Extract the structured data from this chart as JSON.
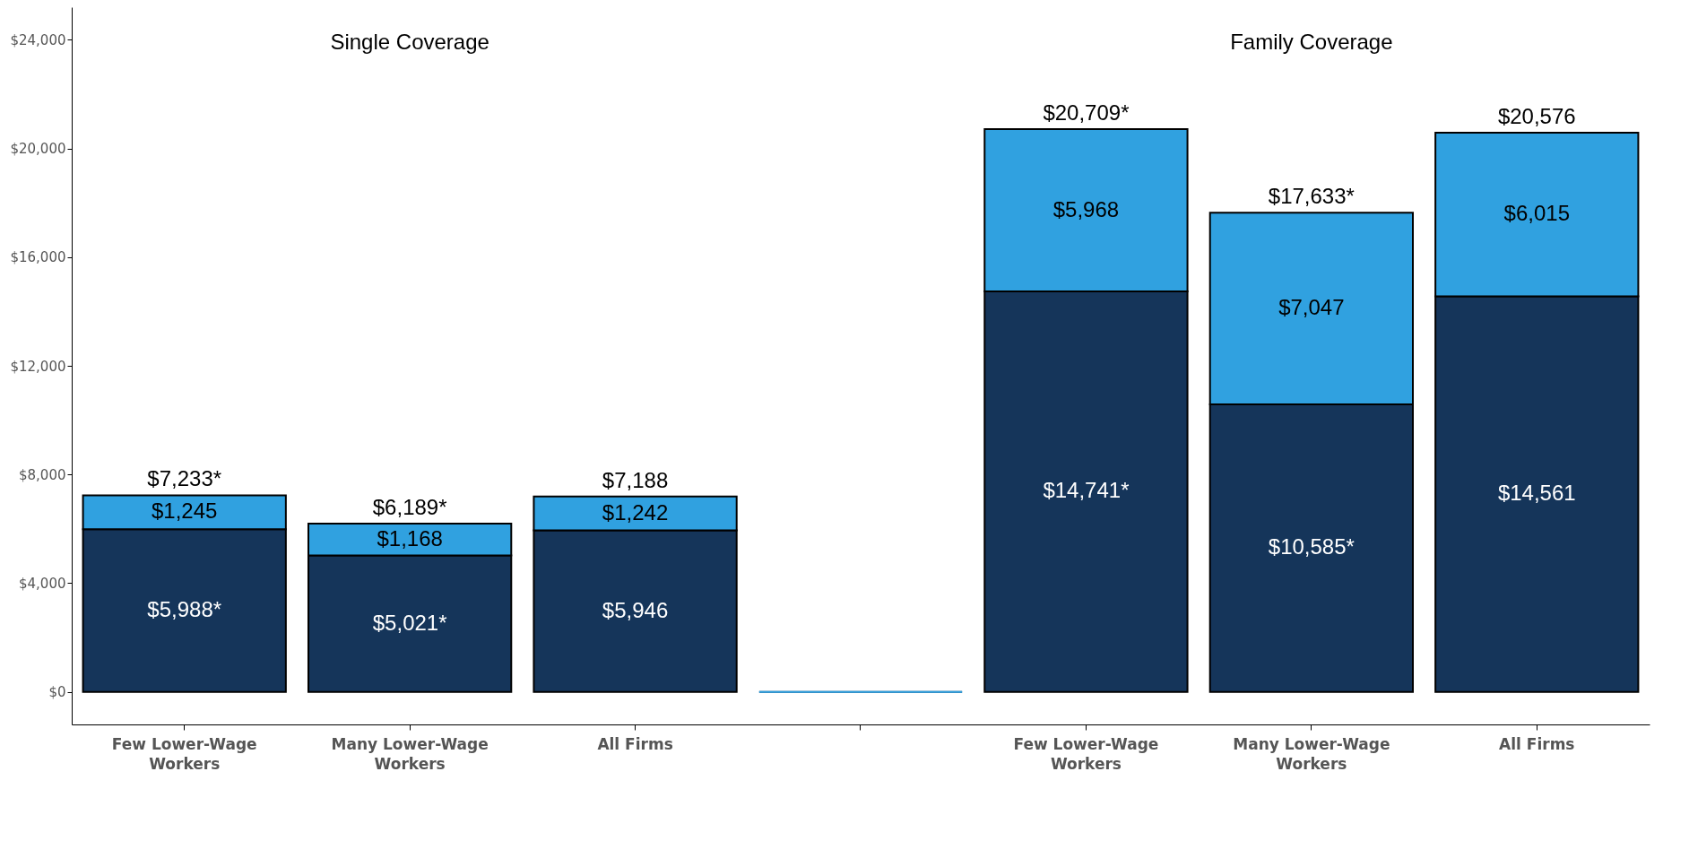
{
  "chart_data": {
    "type": "bar",
    "stacked": true,
    "categories": [
      "Few Lower-Wage Workers",
      "Many Lower-Wage Workers",
      "All Firms",
      null,
      "Few Lower-Wage Workers",
      "Many Lower-Wage Workers",
      "All Firms"
    ],
    "series": [
      {
        "color": "#15355a",
        "values": [
          5988,
          5021,
          5946,
          0,
          14741,
          10585,
          14561
        ],
        "value_labels": [
          "$5,988*",
          "$5,021*",
          "$5,946",
          null,
          "$14,741*",
          "$10,585*",
          "$14,561"
        ]
      },
      {
        "color": "#30a1e0",
        "values": [
          1245,
          1168,
          1242,
          0,
          5968,
          7047,
          6015
        ],
        "value_labels": [
          "$1,245",
          "$1,168",
          "$1,242",
          null,
          "$5,968",
          "$7,047",
          "$6,015"
        ]
      }
    ],
    "totals": [
      "$7,233*",
      "$6,189*",
      "$7,188",
      null,
      "$20,709*",
      "$17,633*",
      "$20,576"
    ],
    "ylim": [
      -1200,
      25200
    ],
    "yticks": [
      {
        "value": 0,
        "label": "$0"
      },
      {
        "value": 4000,
        "label": "$4,000"
      },
      {
        "value": 8000,
        "label": "$8,000"
      },
      {
        "value": 12000,
        "label": "$12,000"
      },
      {
        "value": 16000,
        "label": "$16,000"
      },
      {
        "value": 20000,
        "label": "$20,000"
      },
      {
        "value": 24000,
        "label": "$24,000"
      }
    ],
    "annotations": [
      "Single Coverage",
      "Family Coverage"
    ],
    "grid": false
  }
}
